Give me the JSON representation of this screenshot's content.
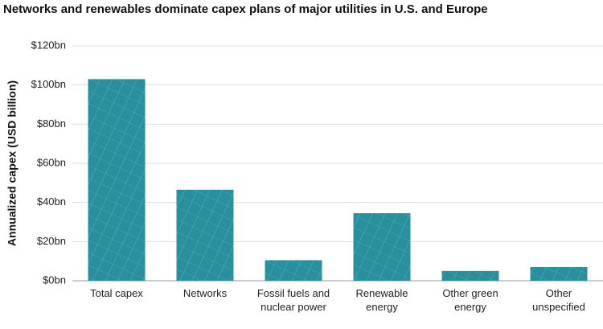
{
  "chart_data": {
    "type": "bar",
    "title": "Networks and renewables dominate capex plans of major utilities in U.S. and Europe",
    "y_label": "Annualized capex (USD billion)",
    "categories": [
      "Total capex",
      "Networks",
      "Fossil fuels and nuclear power",
      "Renewable energy",
      "Other green energy",
      "Other unspecified"
    ],
    "values": [
      103,
      46.5,
      10.5,
      34.5,
      5,
      7
    ],
    "color": "#2a8f9c",
    "ylim": [
      0,
      120
    ],
    "yticks": [
      {
        "value": 0,
        "label": "$0bn"
      },
      {
        "value": 20,
        "label": "$20bn"
      },
      {
        "value": 40,
        "label": "$40bn"
      },
      {
        "value": 60,
        "label": "$60bn"
      },
      {
        "value": 80,
        "label": "$80bn"
      },
      {
        "value": 100,
        "label": "$100bn"
      },
      {
        "value": 120,
        "label": "$120bn"
      }
    ],
    "grid": true
  }
}
